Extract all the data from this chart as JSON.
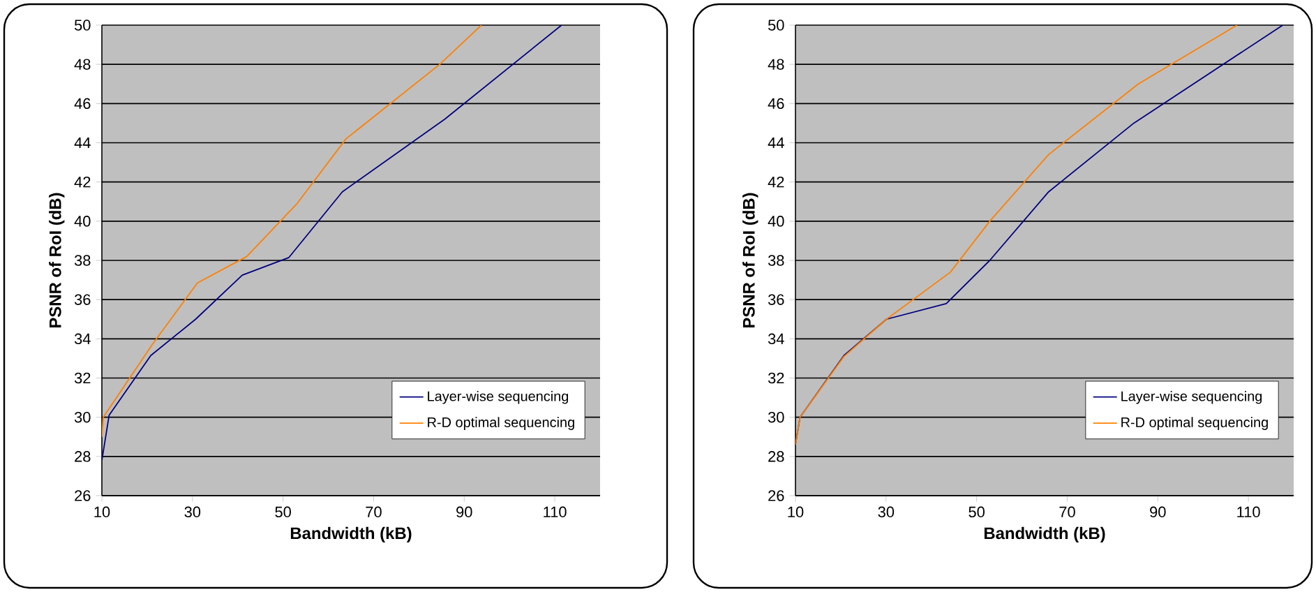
{
  "chart_data": [
    {
      "type": "line",
      "xlabel": "Bandwidth (kB)",
      "ylabel": "PSNR of RoI (dB)",
      "xlim": [
        10,
        120
      ],
      "ylim": [
        26,
        50
      ],
      "xticks": [
        10,
        30,
        50,
        70,
        90,
        110
      ],
      "yticks": [
        26,
        28,
        30,
        32,
        34,
        36,
        38,
        40,
        42,
        44,
        46,
        48,
        50
      ],
      "grid": "y",
      "legend": "bottom right",
      "marker": "none",
      "line_style": "solid",
      "series": [
        {
          "name": "Layer-wise sequencing",
          "color": "#000080",
          "x": [
            10,
            11.6,
            20.8,
            30.7,
            41.0,
            51.3,
            63.1,
            85.7,
            111.5
          ],
          "values": [
            27.8,
            30.1,
            33.15,
            35.0,
            37.25,
            38.15,
            41.5,
            45.2,
            50
          ]
        },
        {
          "name": "R-D optimal sequencing",
          "color": "#ff8000",
          "x": [
            10,
            10.3,
            21.1,
            31.1,
            42.0,
            53.1,
            63.9,
            84.6,
            93.8
          ],
          "values": [
            29.0,
            30.0,
            33.7,
            36.85,
            38.2,
            40.9,
            44.2,
            48.0,
            50
          ]
        }
      ]
    },
    {
      "type": "line",
      "xlabel": "Bandwidth (kB)",
      "ylabel": "PSNR of RoI (dB)",
      "xlim": [
        10,
        120
      ],
      "ylim": [
        26,
        50
      ],
      "xticks": [
        10,
        30,
        50,
        70,
        90,
        110
      ],
      "yticks": [
        26,
        28,
        30,
        32,
        34,
        36,
        38,
        40,
        42,
        44,
        46,
        48,
        50
      ],
      "grid": "y",
      "legend": "bottom right",
      "marker": "none",
      "line_style": "solid",
      "series": [
        {
          "name": "Layer-wise sequencing",
          "color": "#000080",
          "x": [
            10,
            11.0,
            20.7,
            30.1,
            43.3,
            52.9,
            65.9,
            84.7,
            117.6
          ],
          "values": [
            28.6,
            30.0,
            33.15,
            35.0,
            35.8,
            38.0,
            41.5,
            45.0,
            50
          ]
        },
        {
          "name": "R-D optimal sequencing",
          "color": "#ff8000",
          "x": [
            10,
            11.0,
            20.7,
            30.1,
            44.2,
            52.9,
            65.9,
            85.7,
            107.5
          ],
          "values": [
            28.6,
            30.0,
            33.1,
            35.0,
            37.4,
            40.0,
            43.4,
            47.0,
            50
          ]
        }
      ]
    }
  ]
}
